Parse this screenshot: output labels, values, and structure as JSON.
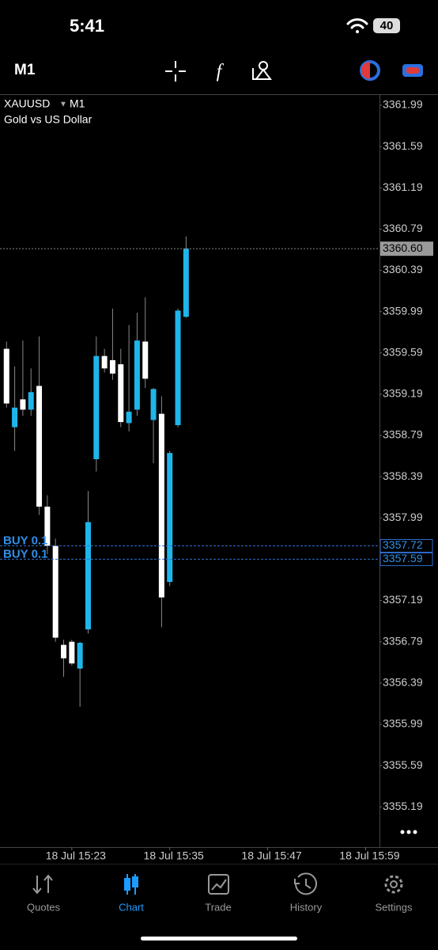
{
  "status_bar": {
    "time": "5:41",
    "battery": "40"
  },
  "toolbar": {
    "timeframe": "M1"
  },
  "chart_data": {
    "type": "candlestick",
    "symbol": "XAUUSD",
    "timeframe": "M1",
    "description": "Gold vs US Dollar",
    "x": [
      15,
      16,
      17,
      18,
      19,
      20,
      21,
      22,
      23,
      24,
      25,
      26,
      27,
      28,
      29,
      30,
      31,
      32,
      33,
      34,
      35,
      36,
      37
    ],
    "open": [
      3359.63,
      3358.87,
      3359.14,
      3359.04,
      3359.27,
      3358.1,
      3357.72,
      3356.76,
      3356.79,
      3356.53,
      3356.91,
      3358.56,
      3359.56,
      3359.52,
      3359.48,
      3358.91,
      3359.04,
      3359.7,
      3358.94,
      3359.0,
      3357.37,
      3358.89,
      3359.94
    ],
    "high": [
      3359.7,
      3359.46,
      3359.71,
      3359.44,
      3359.75,
      3358.21,
      3357.79,
      3356.81,
      3356.81,
      3356.79,
      3358.25,
      3359.75,
      3359.63,
      3360.02,
      3359.63,
      3359.86,
      3359.98,
      3360.13,
      3359.25,
      3359.17,
      3358.64,
      3360.02,
      3360.72
    ],
    "low": [
      3359.06,
      3358.64,
      3358.98,
      3358.98,
      3358.02,
      3357.64,
      3356.79,
      3356.45,
      3356.56,
      3356.16,
      3356.87,
      3358.44,
      3359.4,
      3359.33,
      3358.87,
      3358.83,
      3358.98,
      3359.25,
      3358.52,
      3356.93,
      3357.33,
      3358.87,
      3359.93
    ],
    "close": [
      3359.1,
      3359.06,
      3359.04,
      3359.21,
      3358.1,
      3357.72,
      3356.83,
      3356.63,
      3356.58,
      3356.78,
      3357.95,
      3359.56,
      3359.44,
      3359.39,
      3358.92,
      3359.02,
      3359.71,
      3359.34,
      3359.24,
      3357.22,
      3358.62,
      3360.0,
      3360.6
    ],
    "up_color": "#1eb6ea",
    "down_color": "#ffffff",
    "xlim": [
      14.2,
      60.7
    ],
    "xticks": [
      {
        "value": 23,
        "label": "18 Jul 15:23"
      },
      {
        "value": 35,
        "label": "18 Jul 15:35"
      },
      {
        "value": 47,
        "label": "18 Jul 15:47"
      },
      {
        "value": 59,
        "label": "18 Jul 15:59"
      }
    ],
    "ylim": [
      3354.8,
      3362.09
    ],
    "yticks": [
      3361.99,
      3361.59,
      3361.19,
      3360.79,
      3360.39,
      3359.99,
      3359.59,
      3359.19,
      3358.79,
      3358.39,
      3357.99,
      3357.19,
      3356.79,
      3356.39,
      3355.99,
      3355.59,
      3355.19
    ],
    "current_price": {
      "value": 3360.6,
      "label": "3360.60"
    },
    "orders": [
      {
        "label": "BUY 0.1",
        "price": 3357.72
      },
      {
        "label": "BUY 0.1",
        "price": 3357.59
      }
    ]
  },
  "tab_bar": {
    "active": 1,
    "tabs": [
      {
        "label": "Quotes"
      },
      {
        "label": "Chart"
      },
      {
        "label": "Trade"
      },
      {
        "label": "History"
      },
      {
        "label": "Settings"
      }
    ]
  }
}
